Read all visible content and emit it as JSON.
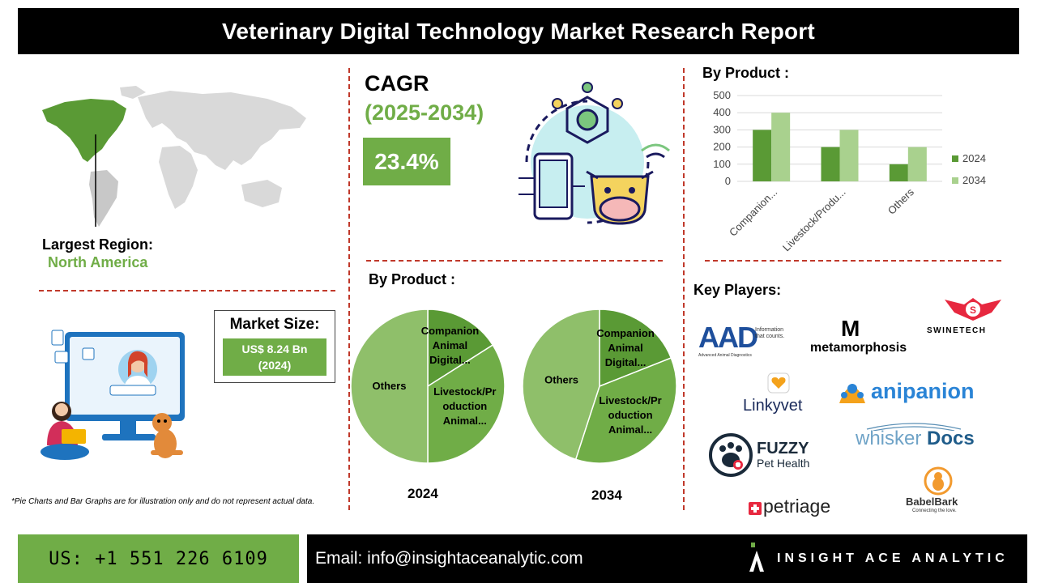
{
  "header": {
    "title": "Veterinary Digital Technology Market Research Report"
  },
  "region": {
    "label": "Largest Region:",
    "value": "North America"
  },
  "cagr": {
    "title": "CAGR",
    "years": "(2025-2034)",
    "value": "23.4%"
  },
  "market_size": {
    "label": "Market Size:",
    "value": "US$ 8.24 Bn",
    "year": "(2024)"
  },
  "pies": {
    "title": "By Product :",
    "left_year": "2024",
    "right_year": "2034",
    "label_companion": [
      "Companion",
      "Animal",
      "Digital..."
    ],
    "label_livestock": [
      "Livestock/Pr",
      "oduction",
      "Animal..."
    ],
    "label_others": "Others"
  },
  "bar": {
    "title": "By Product :"
  },
  "key_players": {
    "title": "Key Players:",
    "logos": {
      "aad": "AAD",
      "aad_tag1": "Information",
      "aad_tag2": "that counts.",
      "aad_sub": "Advanced Animal Diagnostics",
      "metamorphosis": "metamorphosis",
      "swinetech": "SWINETECH",
      "linkyvet": "Linkyvet",
      "anipanion": "anipanion",
      "fuzzy": "FUZZY",
      "fuzzy_sub": "Pet Health",
      "whisker": "whisker",
      "docs": "Docs",
      "petriage": "petriage",
      "babelbark": "BabelBark",
      "babelbark_sub": "Connecting the love."
    }
  },
  "note": "*Pie Charts and Bar Graphs are for illustration only and do not represent actual data.",
  "footer": {
    "phone": "US: +1 551 226 6109",
    "email": "Email: info@insightaceanalytic.com",
    "brand": "INSIGHT ACE ANALYTIC"
  },
  "colors": {
    "dark_green": "#5a9a35",
    "mid_green": "#70ad47",
    "light_green": "#a9d18e",
    "pie_light": "#8fbf6a",
    "divider": "#c0392b"
  },
  "chart_data": [
    {
      "type": "bar",
      "title": "",
      "categories": [
        "Companion...",
        "Livestock/Produ...",
        "Others"
      ],
      "series": [
        {
          "name": "2024",
          "values": [
            300,
            200,
            100
          ]
        },
        {
          "name": "2034",
          "values": [
            400,
            300,
            200
          ]
        }
      ],
      "y_ticks": [
        "0",
        "100",
        "200",
        "300",
        "400",
        "500"
      ],
      "ylim": [
        0,
        500
      ],
      "grid": true,
      "legend": "right"
    },
    {
      "type": "pie",
      "title": "2024",
      "labels": [
        "Companion Animal Digital...",
        "Livestock/Production Animal...",
        "Others"
      ],
      "values": [
        16,
        34,
        50
      ]
    },
    {
      "type": "pie",
      "title": "2034",
      "labels": [
        "Companion Animal Digital...",
        "Livestock/Production Animal...",
        "Others"
      ],
      "values": [
        19,
        36,
        45
      ]
    }
  ]
}
